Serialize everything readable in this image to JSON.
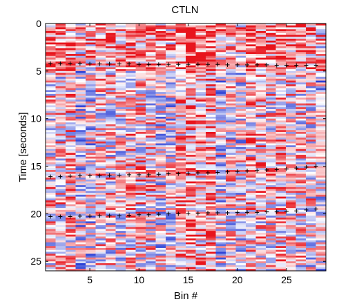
{
  "chart_data": {
    "type": "heatmap",
    "title": "CTLN",
    "xlabel": "Bin #",
    "ylabel": "Time [seconds]",
    "xlim": [
      0.5,
      29
    ],
    "ylim": [
      0,
      26
    ],
    "y_reversed": true,
    "xticks": [
      5,
      10,
      15,
      20,
      25
    ],
    "yticks": [
      0,
      5,
      10,
      15,
      20,
      25
    ],
    "grid": false,
    "colormap": "blue-white-red",
    "colors": {
      "low": "#2a3fd6",
      "mid": "#ffffff",
      "high": "#e8141c"
    },
    "rows_estimated": 130,
    "columns": 28,
    "markers": {
      "symbol": "+",
      "series": [
        {
          "x": [
            1,
            2,
            3,
            4,
            5,
            6,
            7,
            8,
            9,
            10,
            11,
            12,
            13,
            14,
            15,
            16,
            17,
            18,
            19,
            20,
            21,
            22,
            23,
            24,
            25,
            26,
            27,
            28
          ],
          "y": [
            4.2,
            4.2,
            4.2,
            4.2,
            4.25,
            4.25,
            4.25,
            4.25,
            4.25,
            4.3,
            4.3,
            4.3,
            4.3,
            4.3,
            4.3,
            4.3,
            4.3,
            4.3,
            4.35,
            4.35,
            4.35,
            4.35,
            4.35,
            4.4,
            4.4,
            4.4,
            4.4,
            4.4
          ]
        },
        {
          "x": [
            1,
            2,
            3,
            4,
            5,
            6,
            7,
            8,
            9,
            10,
            11,
            12,
            13,
            14,
            15,
            16,
            17,
            18,
            19,
            20,
            21,
            22,
            23,
            24,
            25,
            26,
            27,
            28
          ],
          "y": [
            16.1,
            16.1,
            16.05,
            16.0,
            16.0,
            16.0,
            15.95,
            15.95,
            15.9,
            15.9,
            15.9,
            15.85,
            15.8,
            15.8,
            15.75,
            15.7,
            15.7,
            15.65,
            15.6,
            15.55,
            15.5,
            15.45,
            15.4,
            15.35,
            15.3,
            15.2,
            15.1,
            15.0
          ]
        },
        {
          "x": [
            1,
            2,
            3,
            4,
            5,
            6,
            7,
            8,
            9,
            10,
            11,
            12,
            13,
            14,
            15,
            16,
            17,
            18,
            19,
            20,
            21,
            22,
            23,
            24,
            25,
            26,
            27,
            28
          ],
          "y": [
            20.3,
            20.3,
            20.3,
            20.25,
            20.25,
            20.2,
            20.2,
            20.2,
            20.15,
            20.1,
            20.1,
            20.05,
            20.0,
            20.0,
            19.95,
            19.95,
            19.9,
            19.9,
            19.9,
            19.85,
            19.85,
            19.85,
            19.8,
            19.8,
            19.75,
            19.7,
            19.6,
            19.5
          ]
        }
      ]
    }
  }
}
